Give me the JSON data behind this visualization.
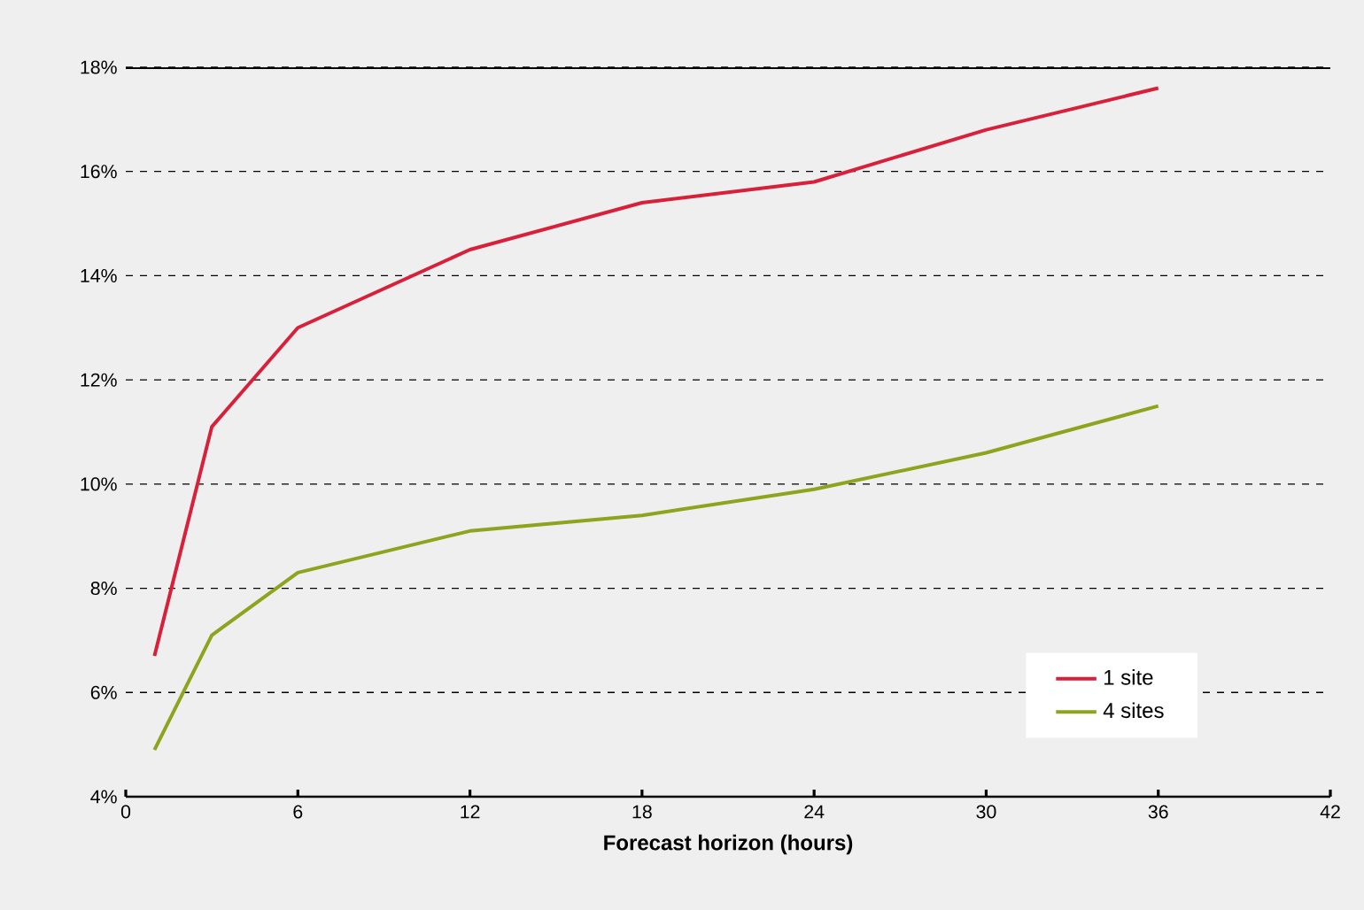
{
  "chart_data": {
    "type": "line",
    "xlabel": "Forecast horizon (hours)",
    "x": [
      1,
      3,
      6,
      12,
      18,
      24,
      30,
      36
    ],
    "series": [
      {
        "name": "1 site",
        "color": "#d9203a",
        "values": [
          6.7,
          11.1,
          13.0,
          14.5,
          15.4,
          15.8,
          16.8,
          17.6
        ]
      },
      {
        "name": "4 sites",
        "color": "#8fa31e",
        "values": [
          4.9,
          7.1,
          8.3,
          9.1,
          9.4,
          9.9,
          10.6,
          11.5
        ]
      }
    ],
    "xlim": [
      0,
      42
    ],
    "xticks": [
      0,
      6,
      12,
      18,
      24,
      30,
      36,
      42
    ],
    "ylim": [
      4,
      18
    ],
    "yticks": [
      {
        "value": 4,
        "label": "4%"
      },
      {
        "value": 6,
        "label": "6%"
      },
      {
        "value": 8,
        "label": "8%"
      },
      {
        "value": 10,
        "label": "10%"
      },
      {
        "value": 12,
        "label": "12%"
      },
      {
        "value": 14,
        "label": "14%"
      },
      {
        "value": 16,
        "label": "16%"
      },
      {
        "value": 18,
        "label": "18%"
      }
    ],
    "grid": "y",
    "legend": "bottom right",
    "marker": "none",
    "line_style": "solid"
  }
}
